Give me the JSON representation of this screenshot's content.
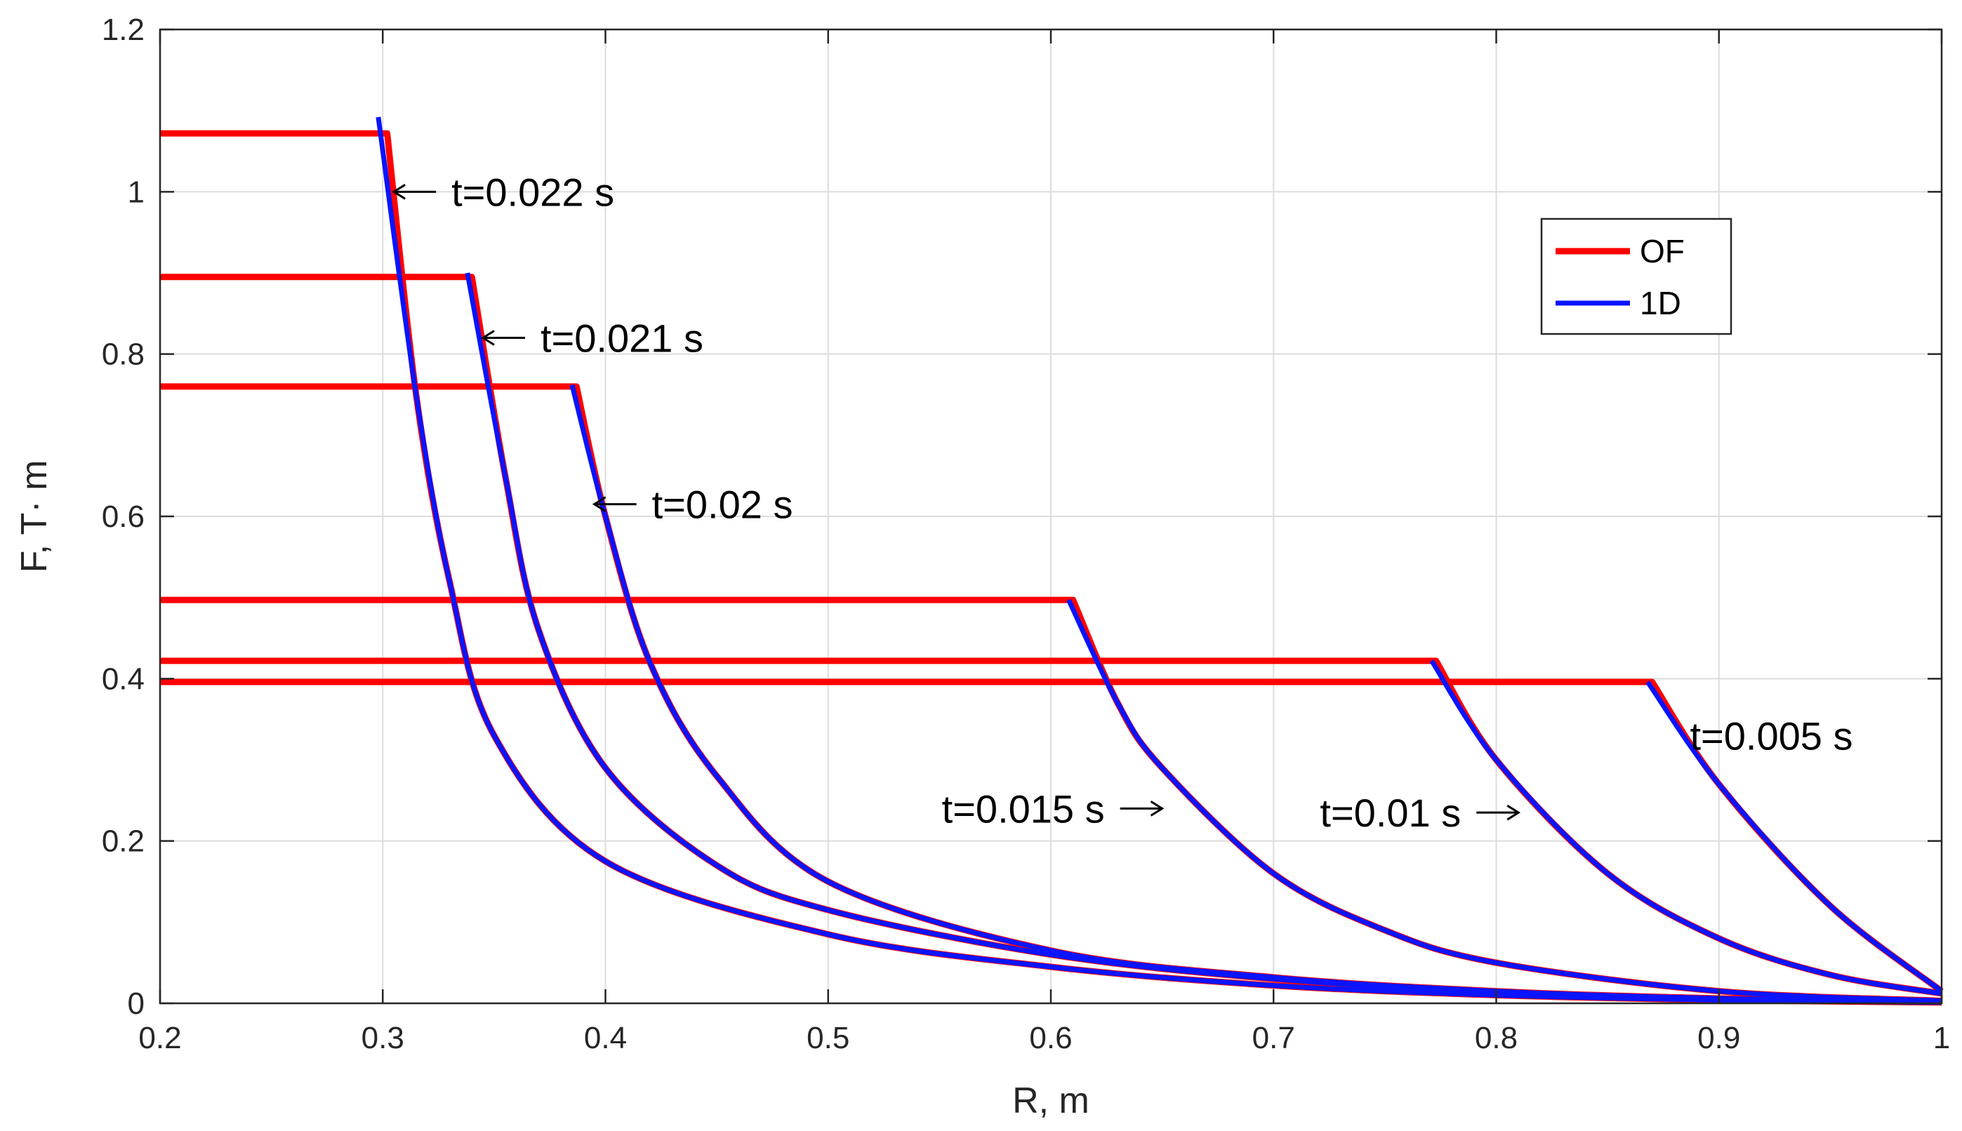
{
  "chart_data": {
    "type": "line",
    "title": "",
    "xlabel": "R, m",
    "ylabel": "F, T· m",
    "xlim": [
      0.2,
      1.0
    ],
    "ylim": [
      0,
      1.2
    ],
    "xticks": [
      0.2,
      0.3,
      0.4,
      0.5,
      0.6,
      0.7,
      0.8,
      0.9,
      1.0
    ],
    "xtick_labels": [
      "0.2",
      "0.3",
      "0.4",
      "0.5",
      "0.6",
      "0.7",
      "0.8",
      "0.9",
      "1"
    ],
    "yticks": [
      0,
      0.2,
      0.4,
      0.6,
      0.8,
      1.0,
      1.2
    ],
    "ytick_labels": [
      "0",
      "0.2",
      "0.4",
      "0.6",
      "0.8",
      "1",
      "1.2"
    ],
    "grid": true,
    "legend": {
      "position": "top-right",
      "entries": [
        "OF",
        "1D"
      ]
    },
    "colors": {
      "OF": "#ff0000",
      "1D": "#0a14ff",
      "grid": "#dcdcdc",
      "axis": "#262626"
    },
    "series": [
      {
        "name": "OF",
        "curves": [
          {
            "time": "t=0.022 s",
            "x": [
              0.2,
              0.302,
              0.315,
              0.33,
              0.35,
              0.4,
              0.5,
              0.6,
              0.7,
              0.8,
              0.9,
              1.0
            ],
            "y": [
              1.072,
              1.072,
              0.75,
              0.52,
              0.33,
              0.175,
              0.085,
              0.045,
              0.022,
              0.01,
              0.004,
              0.001
            ]
          },
          {
            "time": "t=0.021 s",
            "x": [
              0.2,
              0.34,
              0.355,
              0.37,
              0.4,
              0.45,
              0.5,
              0.6,
              0.7,
              0.8,
              0.9,
              1.0
            ],
            "y": [
              0.895,
              0.895,
              0.65,
              0.46,
              0.29,
              0.17,
              0.115,
              0.06,
              0.03,
              0.014,
              0.006,
              0.002
            ]
          },
          {
            "time": "t=0.02 s",
            "x": [
              0.2,
              0.387,
              0.4,
              0.42,
              0.45,
              0.5,
              0.6,
              0.7,
              0.8,
              0.9,
              1.0
            ],
            "y": [
              0.76,
              0.76,
              0.6,
              0.42,
              0.28,
              0.15,
              0.065,
              0.032,
              0.015,
              0.006,
              0.002
            ]
          },
          {
            "time": "t=0.015 s",
            "x": [
              0.2,
              0.61,
              0.63,
              0.65,
              0.7,
              0.75,
              0.8,
              0.9,
              1.0
            ],
            "y": [
              0.497,
              0.497,
              0.37,
              0.29,
              0.16,
              0.09,
              0.05,
              0.015,
              0.003
            ]
          },
          {
            "time": "t=0.01 s",
            "x": [
              0.2,
              0.773,
              0.8,
              0.85,
              0.9,
              0.95,
              1.0
            ],
            "y": [
              0.422,
              0.422,
              0.3,
              0.16,
              0.08,
              0.035,
              0.012
            ]
          },
          {
            "time": "t=0.005 s",
            "x": [
              0.2,
              0.87,
              0.9,
              0.95,
              1.0
            ],
            "y": [
              0.396,
              0.396,
              0.27,
              0.12,
              0.015
            ]
          }
        ]
      },
      {
        "name": "1D",
        "curves": [
          {
            "time": "t=0.022 s",
            "x": [
              0.298,
              0.315,
              0.33,
              0.35,
              0.4,
              0.5,
              0.6,
              0.7,
              0.8,
              0.9,
              1.0
            ],
            "y": [
              1.092,
              0.75,
              0.52,
              0.33,
              0.175,
              0.085,
              0.045,
              0.022,
              0.01,
              0.004,
              0.001
            ]
          },
          {
            "time": "t=0.021 s",
            "x": [
              0.338,
              0.355,
              0.37,
              0.4,
              0.45,
              0.5,
              0.6,
              0.7,
              0.8,
              0.9,
              1.0
            ],
            "y": [
              0.9,
              0.65,
              0.46,
              0.29,
              0.17,
              0.115,
              0.06,
              0.03,
              0.014,
              0.006,
              0.002
            ]
          },
          {
            "time": "t=0.02 s",
            "x": [
              0.385,
              0.4,
              0.42,
              0.45,
              0.5,
              0.6,
              0.7,
              0.8,
              0.9,
              1.0
            ],
            "y": [
              0.762,
              0.6,
              0.42,
              0.28,
              0.15,
              0.065,
              0.032,
              0.015,
              0.006,
              0.002
            ]
          },
          {
            "time": "t=0.015 s",
            "x": [
              0.608,
              0.63,
              0.65,
              0.7,
              0.75,
              0.8,
              0.9,
              1.0
            ],
            "y": [
              0.497,
              0.37,
              0.29,
              0.16,
              0.09,
              0.05,
              0.015,
              0.003
            ]
          },
          {
            "time": "t=0.01 s",
            "x": [
              0.771,
              0.8,
              0.85,
              0.9,
              0.95,
              1.0
            ],
            "y": [
              0.422,
              0.3,
              0.16,
              0.08,
              0.035,
              0.012
            ]
          },
          {
            "time": "t=0.005 s",
            "x": [
              0.868,
              0.9,
              0.95,
              1.0
            ],
            "y": [
              0.396,
              0.27,
              0.12,
              0.015
            ]
          }
        ]
      }
    ],
    "annotations": [
      {
        "text": "t=0.022 s",
        "arrow": "left",
        "x": 0.305,
        "y": 1.0
      },
      {
        "text": "t=0.021 s",
        "arrow": "left",
        "x": 0.345,
        "y": 0.82
      },
      {
        "text": "t=0.02 s",
        "arrow": "left",
        "x": 0.395,
        "y": 0.615
      },
      {
        "text": "t=0.015 s",
        "arrow": "right",
        "x": 0.65,
        "y": 0.24
      },
      {
        "text": "t=0.01 s",
        "arrow": "right",
        "x": 0.81,
        "y": 0.235
      },
      {
        "text": "t=0.005 s",
        "arrow": "none",
        "x": 0.887,
        "y": 0.33
      }
    ]
  }
}
